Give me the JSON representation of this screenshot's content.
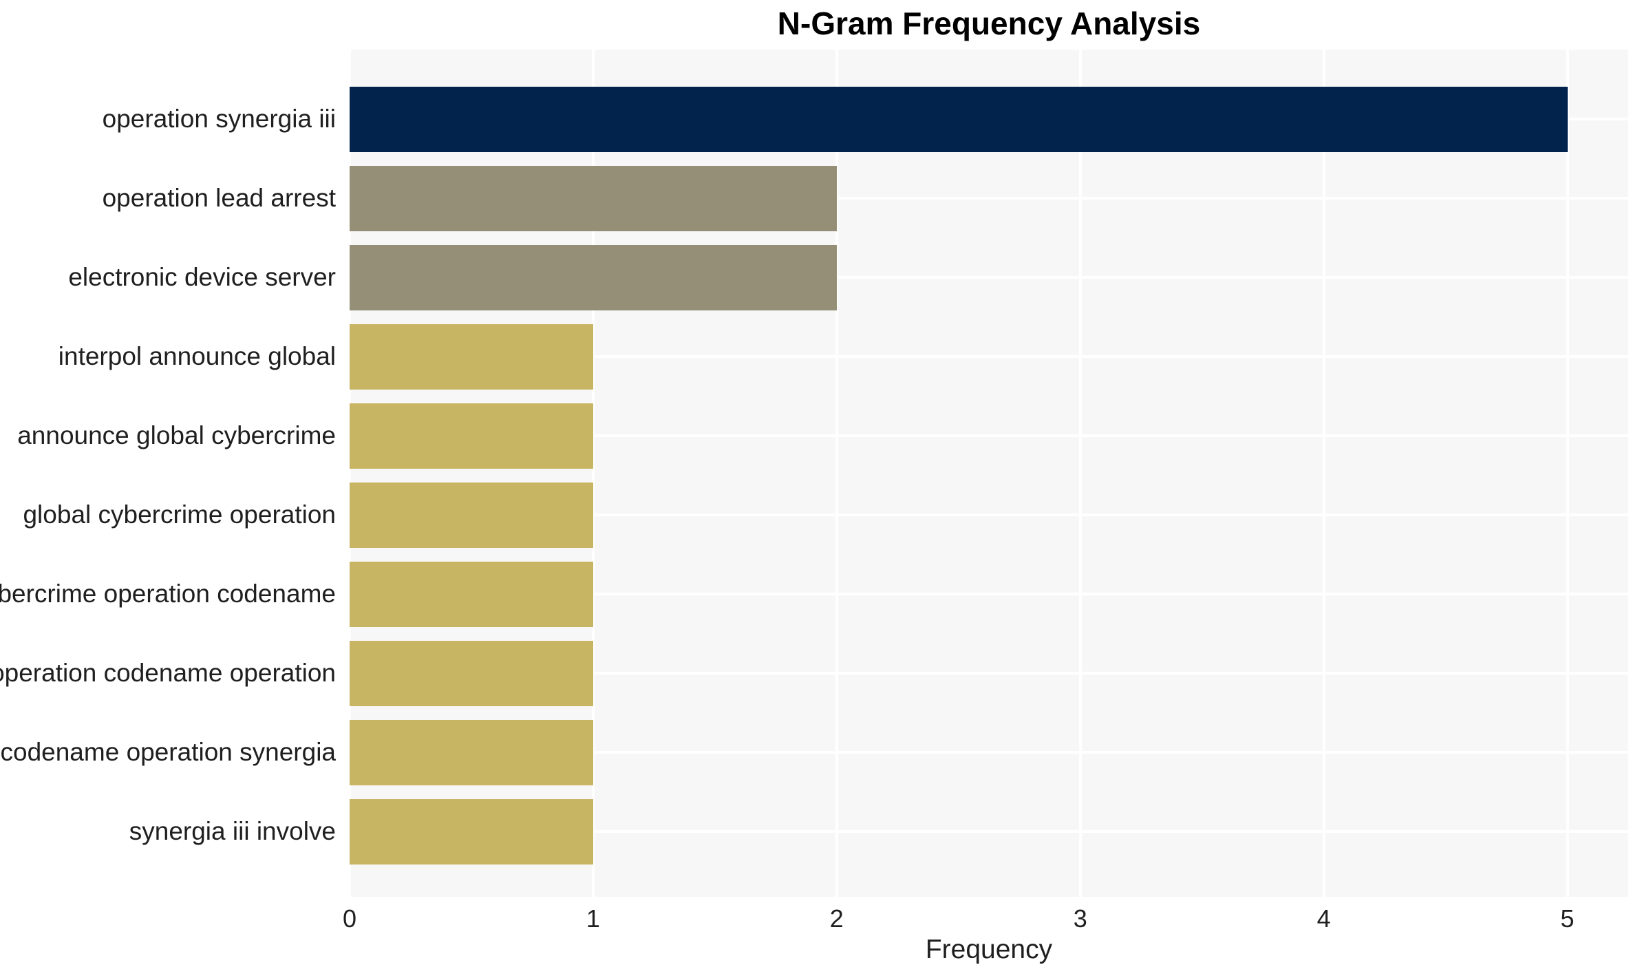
{
  "page": {
    "background": "#ffffff"
  },
  "chart_data": {
    "type": "bar",
    "orientation": "horizontal",
    "title": "N-Gram Frequency Analysis",
    "xlabel": "Frequency",
    "ylabel": "",
    "categories": [
      "operation synergia iii",
      "operation lead arrest",
      "electronic device server",
      "interpol announce global",
      "announce global cybercrime",
      "global cybercrime operation",
      "cybercrime operation codename",
      "operation codename operation",
      "codename operation synergia",
      "synergia iii involve"
    ],
    "values": [
      5,
      2,
      2,
      1,
      1,
      1,
      1,
      1,
      1,
      1
    ],
    "bar_colors": [
      "#02234c",
      "#948f76",
      "#948f76",
      "#c8b564",
      "#c8b564",
      "#c8b564",
      "#c8b564",
      "#c8b564",
      "#c8b564",
      "#c8b564"
    ],
    "xticks": [
      0,
      1,
      2,
      3,
      4,
      5
    ],
    "xlim": [
      0,
      5.25
    ],
    "grid": true,
    "legend": false,
    "plot_bg": "#f7f7f7",
    "grid_color": "#ffffff",
    "text_color": "#1f1f1f",
    "title_color": "#000000"
  }
}
